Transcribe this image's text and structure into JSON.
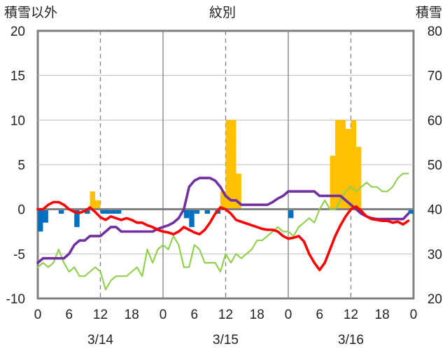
{
  "chart_data": {
    "type": "bar+line",
    "title": "紋別",
    "ylabel_left": "積雪以外",
    "ylabel_right": "積雪",
    "ylim_left": [
      -10,
      20
    ],
    "ylim_right": [
      20,
      80
    ],
    "yticks_left": [
      "20",
      "15",
      "10",
      "5",
      "0",
      "-5",
      "-10"
    ],
    "yticks_right": [
      "80",
      "70",
      "60",
      "50",
      "40",
      "30",
      "20"
    ],
    "xlim_hours": [
      0,
      72
    ],
    "xticks": [
      "0",
      "6",
      "12",
      "18",
      "0",
      "6",
      "12",
      "18",
      "0",
      "6",
      "12",
      "18",
      "0"
    ],
    "dates": [
      "3/14",
      "3/15",
      "3/16"
    ],
    "grid": "vertical dashed at 12h, solid day boundaries",
    "colors": {
      "bars_positive": "#ffc000",
      "bars_negative": "#0070c0",
      "red_line": "#ff0000",
      "purple_line": "#7030a0",
      "green_line": "#92d050",
      "frame": "#808080",
      "zero_line": "#808080"
    },
    "bars": [
      [
        0,
        -2.5
      ],
      [
        1,
        -1.5
      ],
      [
        4,
        -0.5
      ],
      [
        7,
        -2.0
      ],
      [
        9,
        -0.5
      ],
      [
        10,
        2.0
      ],
      [
        11,
        1.0
      ],
      [
        12,
        -0.5
      ],
      [
        13,
        -0.5
      ],
      [
        14,
        -0.5
      ],
      [
        15,
        -0.5
      ],
      [
        28,
        -1.0
      ],
      [
        29,
        -2.0
      ],
      [
        30,
        -0.5
      ],
      [
        32,
        -0.5
      ],
      [
        34,
        -0.5
      ],
      [
        35,
        2.0
      ],
      [
        36,
        10.0
      ],
      [
        37,
        10.0
      ],
      [
        38,
        4.0
      ],
      [
        48,
        -1.0
      ],
      [
        56,
        6.0
      ],
      [
        57,
        10.0
      ],
      [
        58,
        10.0
      ],
      [
        59,
        9.0
      ],
      [
        60,
        10.0
      ],
      [
        61,
        7.0
      ],
      [
        71,
        -0.5
      ]
    ],
    "series": [
      {
        "color": "#ff0000",
        "axis": "left",
        "points": [
          [
            0,
            0.0
          ],
          [
            1,
            0.0
          ],
          [
            2,
            0.5
          ],
          [
            3,
            0.8
          ],
          [
            4,
            0.8
          ],
          [
            5,
            0.5
          ],
          [
            6,
            0.0
          ],
          [
            7,
            -0.3
          ],
          [
            8,
            -0.4
          ],
          [
            9,
            -0.2
          ],
          [
            10,
            0.2
          ],
          [
            11,
            -0.3
          ],
          [
            12,
            -0.9
          ],
          [
            13,
            -1.2
          ],
          [
            14,
            -0.8
          ],
          [
            15,
            -1.0
          ],
          [
            16,
            -1.2
          ],
          [
            17,
            -1.0
          ],
          [
            18,
            -1.2
          ],
          [
            19,
            -1.5
          ],
          [
            20,
            -1.5
          ],
          [
            21,
            -1.8
          ],
          [
            22,
            -2.0
          ],
          [
            23,
            -2.3
          ],
          [
            24,
            -2.5
          ],
          [
            25,
            -2.6
          ],
          [
            26,
            -2.8
          ],
          [
            27,
            -2.5
          ],
          [
            28,
            -2.0
          ],
          [
            29,
            -2.3
          ],
          [
            30,
            -2.6
          ],
          [
            31,
            -2.8
          ],
          [
            32,
            -2.3
          ],
          [
            33,
            -1.5
          ],
          [
            34,
            -0.5
          ],
          [
            35,
            0.2
          ],
          [
            36,
            0.0
          ],
          [
            37,
            -0.5
          ],
          [
            38,
            -1.2
          ],
          [
            39,
            -1.4
          ],
          [
            40,
            -1.6
          ],
          [
            41,
            -1.8
          ],
          [
            42,
            -2.0
          ],
          [
            43,
            -2.2
          ],
          [
            44,
            -2.3
          ],
          [
            45,
            -2.3
          ],
          [
            46,
            -2.5
          ],
          [
            47,
            -3.0
          ],
          [
            48,
            -3.3
          ],
          [
            49,
            -3.2
          ],
          [
            50,
            -3.0
          ],
          [
            51,
            -3.6
          ],
          [
            52,
            -5.0
          ],
          [
            53,
            -6.0
          ],
          [
            54,
            -6.8
          ],
          [
            55,
            -6.0
          ],
          [
            56,
            -4.5
          ],
          [
            57,
            -3.0
          ],
          [
            58,
            -1.8
          ],
          [
            59,
            -0.8
          ],
          [
            60,
            0.0
          ],
          [
            61,
            0.3
          ],
          [
            62,
            -0.2
          ],
          [
            63,
            -0.8
          ],
          [
            64,
            -1.1
          ],
          [
            65,
            -1.2
          ],
          [
            66,
            -1.3
          ],
          [
            67,
            -1.3
          ],
          [
            68,
            -1.5
          ],
          [
            69,
            -1.4
          ],
          [
            70,
            -1.7
          ],
          [
            71,
            -1.3
          ]
        ]
      },
      {
        "color": "#7030a0",
        "axis": "left",
        "points": [
          [
            0,
            -6.0
          ],
          [
            1,
            -5.5
          ],
          [
            3,
            -5.5
          ],
          [
            5,
            -5.5
          ],
          [
            6,
            -5.0
          ],
          [
            7,
            -4.0
          ],
          [
            8,
            -3.5
          ],
          [
            9,
            -3.5
          ],
          [
            10,
            -3.0
          ],
          [
            12,
            -3.0
          ],
          [
            13,
            -2.5
          ],
          [
            14,
            -2.0
          ],
          [
            15,
            -2.0
          ],
          [
            16,
            -2.5
          ],
          [
            18,
            -2.5
          ],
          [
            22,
            -2.5
          ],
          [
            23,
            -2.2
          ],
          [
            24,
            -2.0
          ],
          [
            25,
            -1.8
          ],
          [
            26,
            -1.5
          ],
          [
            27,
            -1.0
          ],
          [
            28,
            0.0
          ],
          [
            29,
            2.5
          ],
          [
            30,
            3.2
          ],
          [
            31,
            3.5
          ],
          [
            33,
            3.5
          ],
          [
            34,
            3.2
          ],
          [
            35,
            2.5
          ],
          [
            36,
            1.5
          ],
          [
            37,
            1.0
          ],
          [
            38,
            1.0
          ],
          [
            39,
            0.5
          ],
          [
            40,
            0.5
          ],
          [
            44,
            0.5
          ],
          [
            45,
            0.8
          ],
          [
            46,
            1.2
          ],
          [
            47,
            1.5
          ],
          [
            48,
            2.0
          ],
          [
            49,
            2.0
          ],
          [
            50,
            2.0
          ],
          [
            53,
            2.0
          ],
          [
            54,
            1.5
          ],
          [
            55,
            1.5
          ],
          [
            58,
            1.5
          ],
          [
            59,
            1.0
          ],
          [
            60,
            0.5
          ],
          [
            61,
            0.0
          ],
          [
            62,
            -0.5
          ],
          [
            63,
            -0.8
          ],
          [
            64,
            -1.0
          ],
          [
            65,
            -1.1
          ],
          [
            66,
            -1.1
          ],
          [
            70,
            -1.1
          ],
          [
            71,
            -0.5
          ]
        ]
      },
      {
        "color": "#92d050",
        "axis": "right",
        "points": [
          [
            0,
            27
          ],
          [
            1,
            28
          ],
          [
            2,
            27
          ],
          [
            3,
            28
          ],
          [
            4,
            31
          ],
          [
            5,
            28
          ],
          [
            6,
            26
          ],
          [
            7,
            27
          ],
          [
            8,
            25
          ],
          [
            9,
            25
          ],
          [
            10,
            26
          ],
          [
            11,
            27
          ],
          [
            12,
            26
          ],
          [
            13,
            22
          ],
          [
            14,
            24
          ],
          [
            15,
            25
          ],
          [
            16,
            25
          ],
          [
            17,
            25
          ],
          [
            18,
            26
          ],
          [
            19,
            27
          ],
          [
            20,
            25
          ],
          [
            21,
            31
          ],
          [
            22,
            28
          ],
          [
            23,
            31
          ],
          [
            24,
            32
          ],
          [
            25,
            31
          ],
          [
            26,
            34
          ],
          [
            27,
            32
          ],
          [
            28,
            27
          ],
          [
            29,
            27
          ],
          [
            30,
            32
          ],
          [
            31,
            31
          ],
          [
            32,
            28
          ],
          [
            33,
            28
          ],
          [
            34,
            28
          ],
          [
            35,
            26
          ],
          [
            36,
            30
          ],
          [
            37,
            28
          ],
          [
            38,
            30
          ],
          [
            39,
            29
          ],
          [
            40,
            30
          ],
          [
            41,
            31
          ],
          [
            42,
            33
          ],
          [
            43,
            33
          ],
          [
            44,
            34
          ],
          [
            45,
            35
          ],
          [
            46,
            36
          ],
          [
            47,
            35
          ],
          [
            48,
            35
          ],
          [
            49,
            34
          ],
          [
            50,
            36
          ],
          [
            51,
            37
          ],
          [
            52,
            38
          ],
          [
            53,
            37
          ],
          [
            54,
            40
          ],
          [
            55,
            42
          ],
          [
            56,
            40
          ],
          [
            57,
            40
          ],
          [
            58,
            42
          ],
          [
            59,
            44
          ],
          [
            60,
            45
          ],
          [
            61,
            44
          ],
          [
            62,
            45
          ],
          [
            63,
            46
          ],
          [
            64,
            45
          ],
          [
            65,
            45
          ],
          [
            66,
            44
          ],
          [
            67,
            44
          ],
          [
            68,
            45
          ],
          [
            69,
            47
          ],
          [
            70,
            48
          ],
          [
            71,
            48
          ]
        ]
      }
    ]
  }
}
